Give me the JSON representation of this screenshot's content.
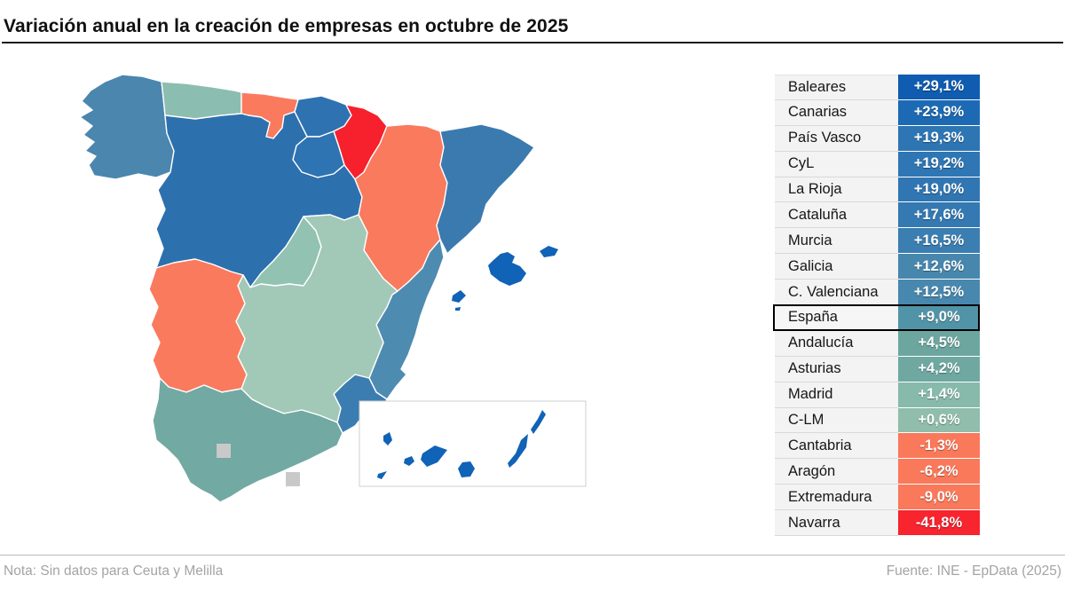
{
  "title": "Variación anual en la creación de empresas en octubre de 2025",
  "note": "Nota: Sin datos para Ceuta y Melilla",
  "source": "Fuente: INE - EpData (2025)",
  "colors": {
    "no_data_gray": "#c9c9c9",
    "inset_border": "#cfcfcf",
    "title_rule": "#1c1c1c",
    "footer_rule": "#b9b9b9"
  },
  "chart_data": {
    "type": "choropleth",
    "geography": "Spain - autonomous communities (with Baleares, Canarias inset)",
    "title": "Variación anual en la creación de empresas en octubre de 2025",
    "unit": "% variación anual",
    "legend_position": "right-ranked-table",
    "highlight": "España",
    "no_data": [
      "Ceuta",
      "Melilla"
    ],
    "regions": [
      {
        "name": "Baleares",
        "value_label": "+29,1%",
        "value": 29.1,
        "map_key": "baleares",
        "color": "#0f5cb1",
        "map_color": "#1063b6"
      },
      {
        "name": "Canarias",
        "value_label": "+23,9%",
        "value": 23.9,
        "map_key": "canarias",
        "color": "#1d6ab4",
        "map_color": "#1063b6"
      },
      {
        "name": "País Vasco",
        "value_label": "+19,3%",
        "value": 19.3,
        "map_key": "pais_vasco",
        "color": "#2e75b4",
        "map_color": "#2e72b1"
      },
      {
        "name": "CyL",
        "value_label": "+19,2%",
        "value": 19.2,
        "map_key": "cyl",
        "color": "#2f76b4",
        "map_color": "#2d70ae"
      },
      {
        "name": "La Rioja",
        "value_label": "+19,0%",
        "value": 19.0,
        "map_key": "la_rioja",
        "color": "#3076b3",
        "map_color": "#2e73b2"
      },
      {
        "name": "Cataluña",
        "value_label": "+17,6%",
        "value": 17.6,
        "map_key": "cataluna",
        "color": "#3479b2",
        "map_color": "#3a7aaf"
      },
      {
        "name": "Murcia",
        "value_label": "+16,5%",
        "value": 16.5,
        "map_key": "murcia",
        "color": "#3b7eb1",
        "map_color": "#3c7db1"
      },
      {
        "name": "Galicia",
        "value_label": "+12,6%",
        "value": 12.6,
        "map_key": "galicia",
        "color": "#4787ae",
        "map_color": "#4a86ad"
      },
      {
        "name": "C. Valenciana",
        "value_label": "+12,5%",
        "value": 12.5,
        "map_key": "c_valenciana",
        "color": "#4888ae",
        "map_color": "#4e8bb0"
      },
      {
        "name": "España",
        "value_label": "+9,0%",
        "value": 9.0,
        "map_key": null,
        "color": "#5294a7",
        "highlight": true
      },
      {
        "name": "Andalucía",
        "value_label": "+4,5%",
        "value": 4.5,
        "map_key": "andalucia",
        "color": "#6ca69f",
        "map_color": "#72a9a3"
      },
      {
        "name": "Asturias",
        "value_label": "+4,2%",
        "value": 4.2,
        "map_key": "asturias",
        "color": "#6ea8a1",
        "map_color": "#8cbdb1"
      },
      {
        "name": "Madrid",
        "value_label": "+1,4%",
        "value": 1.4,
        "map_key": "madrid",
        "color": "#88baab",
        "map_color": "#92c2b2"
      },
      {
        "name": "C-LM",
        "value_label": "+0,6%",
        "value": 0.6,
        "map_key": "clm",
        "color": "#90bdac",
        "map_color": "#a2c8b8"
      },
      {
        "name": "Cantabria",
        "value_label": "-1,3%",
        "value": -1.3,
        "map_key": "cantabria",
        "color": "#fa795b",
        "map_color": "#fa7a5e"
      },
      {
        "name": "Aragón",
        "value_label": "-6,2%",
        "value": -6.2,
        "map_key": "aragon",
        "color": "#fa795b",
        "map_color": "#fa7a5e"
      },
      {
        "name": "Extremadura",
        "value_label": "-9,0%",
        "value": -9.0,
        "map_key": "extremadura",
        "color": "#fa795b",
        "map_color": "#fa7a5e"
      },
      {
        "name": "Navarra",
        "value_label": "-41,8%",
        "value": -41.8,
        "map_key": "navarra",
        "color": "#f8242e",
        "map_color": "#f6212c"
      }
    ]
  }
}
